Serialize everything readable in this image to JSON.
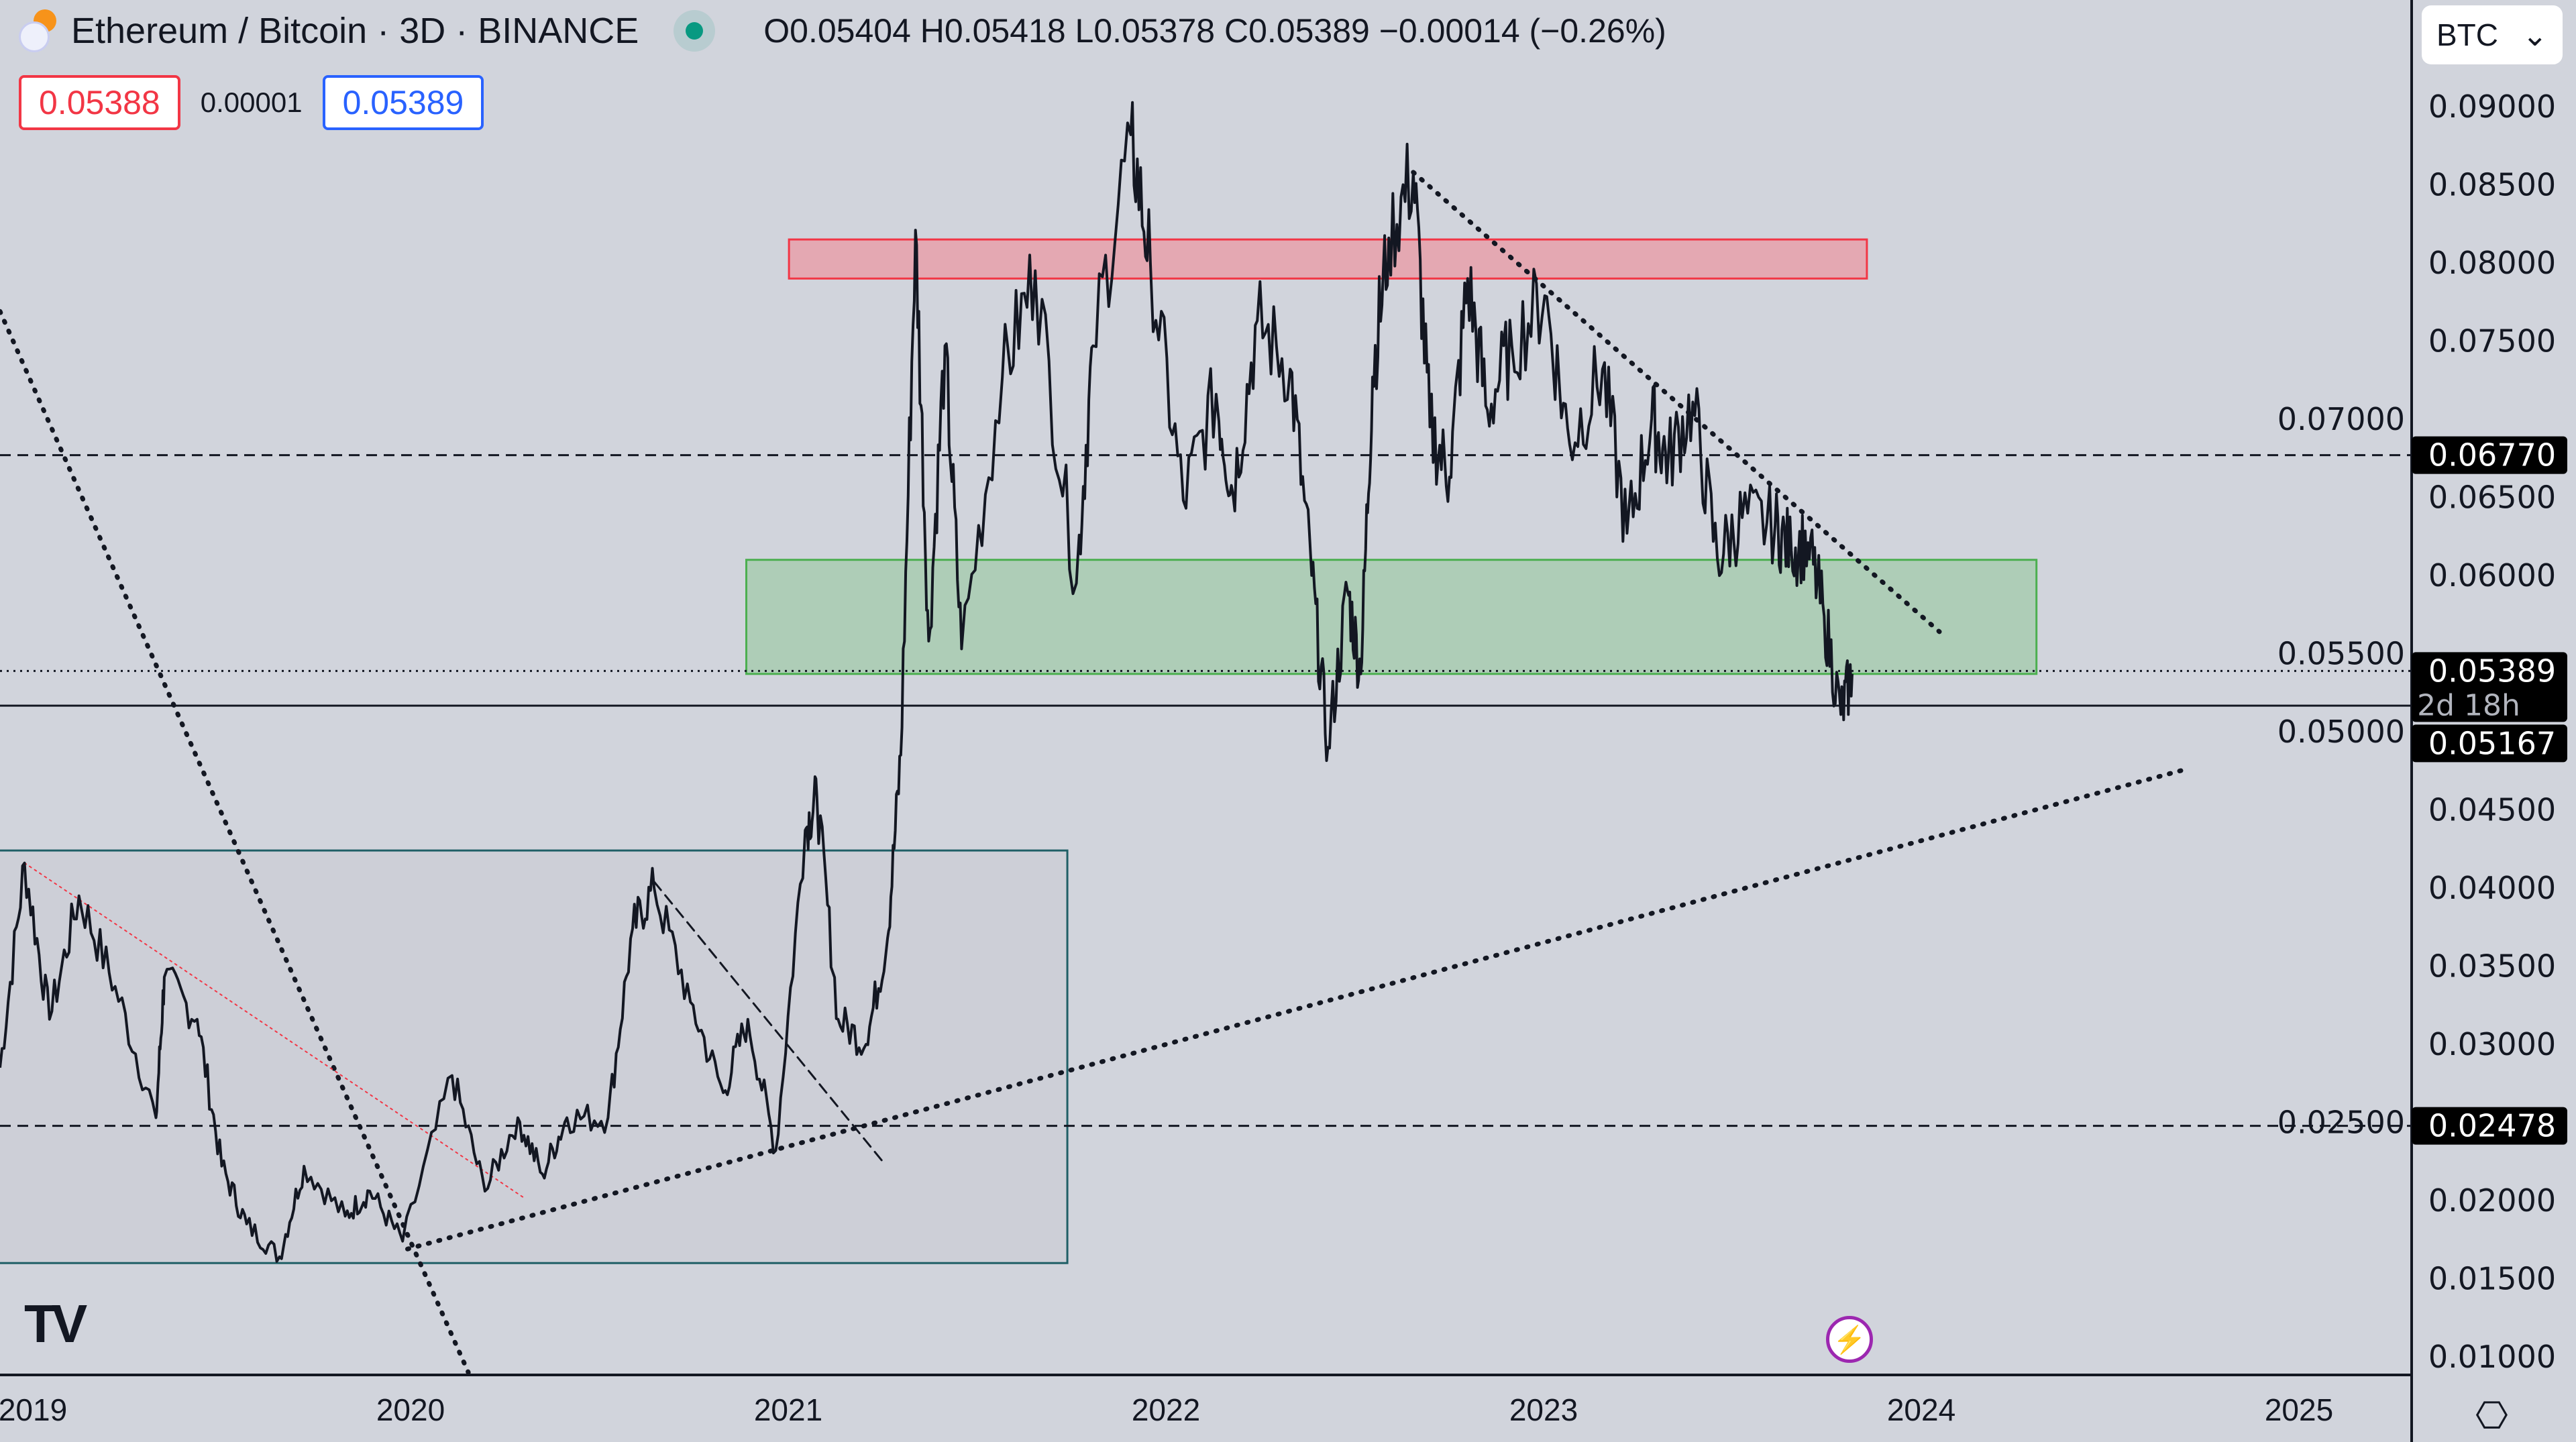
{
  "header": {
    "symbol": "Ethereum / Bitcoin · 3D · BINANCE",
    "ohlc": "O0.05404 H0.05418 L0.05378 C0.05389 −0.00014 (−0.26%)",
    "sell_price": "0.05388",
    "spread": "0.00001",
    "buy_price": "0.05389"
  },
  "currency_select": {
    "value": "BTC",
    "icon": "chevron-down-icon"
  },
  "colors": {
    "background": "#d1d4dc",
    "sell": "#f23645",
    "buy": "#2962ff",
    "live": "#089981",
    "resistance_zone": "#e8a0aa",
    "support_zone": "#a8cbb0",
    "range_box": "#c9ccd4"
  },
  "chart_data": {
    "type": "line",
    "title": "Ethereum / Bitcoin · 3D · BINANCE",
    "xlabel": "",
    "ylabel": "",
    "xlim": [
      2018.91,
      2025.4
    ],
    "ylim": [
      0.0085,
      0.0925
    ],
    "grid": false,
    "x_ticks": [
      "2019",
      "2020",
      "2021",
      "2022",
      "2023",
      "2024",
      "2025"
    ],
    "y_ticks": [
      "0.09000",
      "0.08500",
      "0.08000",
      "0.07500",
      "0.07000",
      "0.06500",
      "0.06000",
      "0.05500",
      "0.05000",
      "0.04500",
      "0.04000",
      "0.03500",
      "0.03000",
      "0.02500",
      "0.02000",
      "0.01500",
      "0.01000"
    ],
    "series": [
      {
        "name": "ETHBTC",
        "x": [
          2018.913,
          2018.978,
          2019.044,
          2019.122,
          2019.218,
          2019.326,
          2019.348,
          2019.435,
          2019.5,
          2019.566,
          2019.653,
          2019.718,
          2019.827,
          2019.892,
          2019.979,
          2020.11,
          2020.197,
          2020.284,
          2020.349,
          2020.414,
          2020.523,
          2020.588,
          2020.645,
          2020.741,
          2020.828,
          2020.893,
          2020.967,
          2021.045,
          2021.076,
          2021.132,
          2021.206,
          2021.263,
          2021.298,
          2021.337,
          2021.372,
          2021.415,
          2021.459,
          2021.567,
          2021.654,
          2021.763,
          2021.807,
          2021.907,
          2021.959,
          2022.046,
          2022.133,
          2022.177,
          2022.242,
          2022.329,
          2022.386,
          2022.429,
          2022.481,
          2022.516,
          2022.547,
          2022.59,
          2022.655,
          2022.699,
          2022.751,
          2022.799,
          2022.851,
          2022.916,
          2023.003,
          2023.069,
          2023.156,
          2023.221,
          2023.286,
          2023.33,
          2023.395,
          2023.46,
          2023.526,
          2023.613,
          2023.656,
          2023.7,
          2023.743,
          2023.787,
          2023.817
        ],
        "values": [
          0.0285,
          0.0416,
          0.0316,
          0.0395,
          0.0337,
          0.0253,
          0.0343,
          0.0316,
          0.0222,
          0.0185,
          0.0164,
          0.0222,
          0.019,
          0.0206,
          0.0174,
          0.028,
          0.0206,
          0.0253,
          0.0217,
          0.0253,
          0.0253,
          0.0374,
          0.04,
          0.0327,
          0.0269,
          0.0316,
          0.0232,
          0.0437,
          0.0458,
          0.0316,
          0.03,
          0.0368,
          0.0485,
          0.0821,
          0.0558,
          0.0747,
          0.0553,
          0.0727,
          0.0795,
          0.0595,
          0.0747,
          0.0882,
          0.08,
          0.0648,
          0.0716,
          0.0653,
          0.0763,
          0.0732,
          0.06,
          0.049,
          0.059,
          0.0537,
          0.0727,
          0.0816,
          0.0858,
          0.0695,
          0.0663,
          0.079,
          0.0706,
          0.0747,
          0.0779,
          0.0684,
          0.0732,
          0.0627,
          0.07,
          0.0674,
          0.0711,
          0.0611,
          0.0637,
          0.0632,
          0.0616,
          0.0621,
          0.0574,
          0.0511,
          0.0537
        ]
      }
    ],
    "zones": [
      {
        "name": "resistance-zone",
        "x": [
          2021.002,
          2023.856
        ],
        "y": [
          0.079,
          0.0815
        ],
        "color": "#e8a0aa",
        "border": "#f23645"
      },
      {
        "name": "support-zone",
        "x": [
          2020.889,
          2024.305
        ],
        "y": [
          0.0537,
          0.061
        ],
        "color": "#a8cbb0",
        "border": "#4caf50"
      },
      {
        "name": "range-box",
        "x": [
          2018.85,
          2021.739
        ],
        "y": [
          0.016,
          0.0424
        ],
        "color": "#c9ccd4",
        "border": "#1f5f66"
      }
    ],
    "levels": [
      {
        "name": "level-line-upper",
        "price": 0.0677,
        "label": "0.06770",
        "style": "dashed"
      },
      {
        "name": "level-line-lower",
        "price": 0.02478,
        "label": "0.02478",
        "style": "dashed"
      },
      {
        "name": "level-line-mid",
        "price": 0.05167,
        "label": "0.05167",
        "style": "solid"
      },
      {
        "name": "last-price-line",
        "price": 0.05389,
        "label": "0.05389",
        "sublabel": "2d 18h",
        "style": "dotted"
      }
    ],
    "trendlines": [
      {
        "name": "trendline-steep-down",
        "from": [
          2018.913,
          0.0769
        ],
        "to": [
          2020.153,
          0.009
        ],
        "style": "dotted"
      },
      {
        "name": "trendline-rising-support",
        "from": [
          2019.992,
          0.0169
        ],
        "to": [
          2024.701,
          0.0476
        ],
        "style": "dotted"
      },
      {
        "name": "trendline-descending-resistance",
        "from": [
          2022.655,
          0.0858
        ],
        "to": [
          2024.048,
          0.0564
        ],
        "style": "dotted"
      },
      {
        "name": "trendline-dashed-2020",
        "from": [
          2020.645,
          0.0404
        ],
        "to": [
          2021.25,
          0.0225
        ],
        "style": "dashed"
      },
      {
        "name": "trendline-red-2019",
        "from": [
          2018.978,
          0.0416
        ],
        "to": [
          2020.305,
          0.0201
        ],
        "style": "reddotted"
      }
    ]
  }
}
